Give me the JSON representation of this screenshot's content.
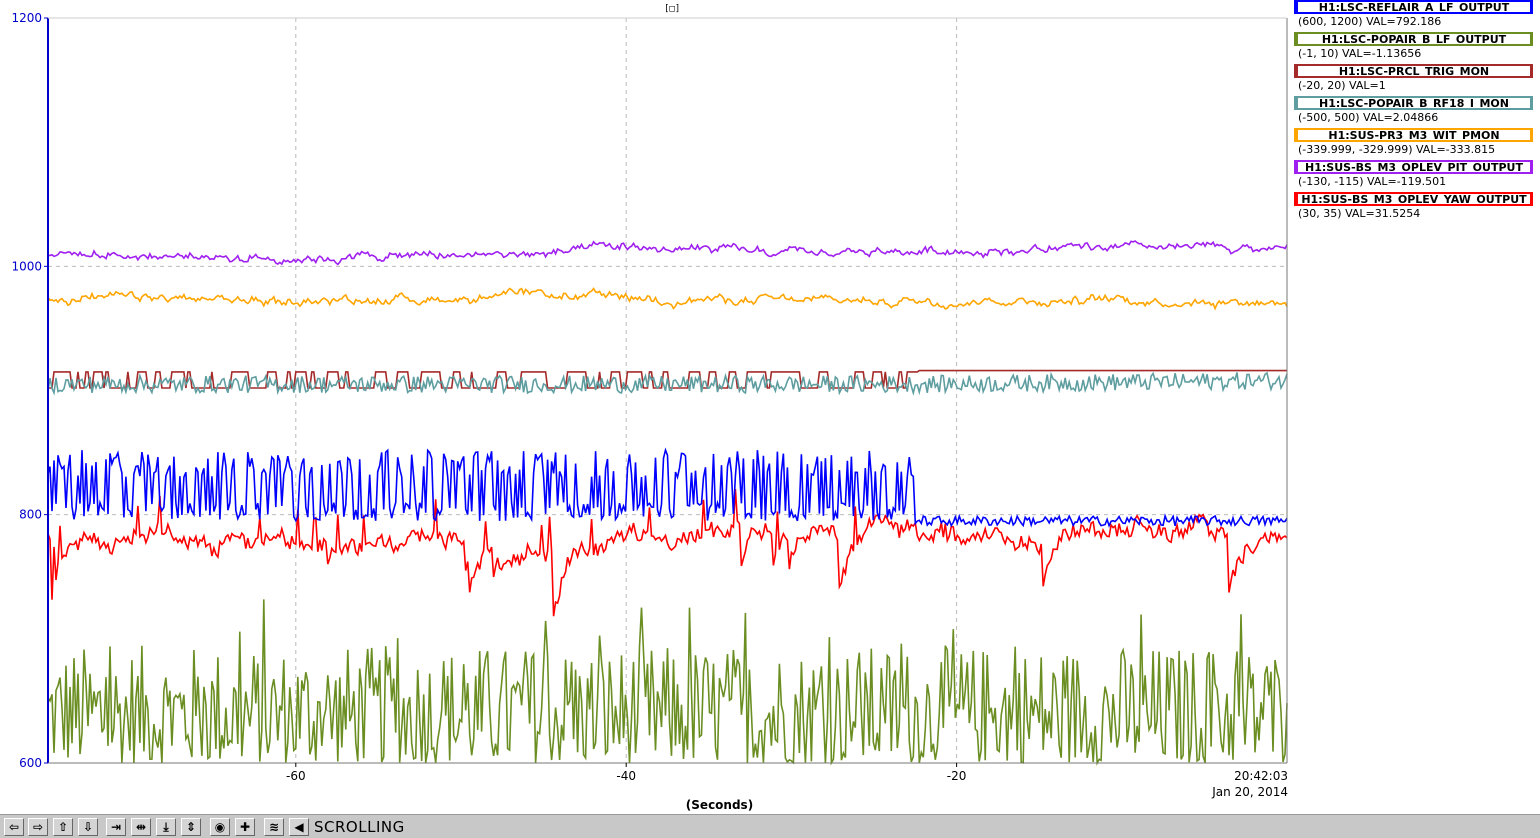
{
  "title_glyph": "[□]",
  "chart_data": {
    "type": "line",
    "xlabel": "(Seconds)",
    "ylabel": "",
    "xlim": [
      -75,
      0
    ],
    "ylim": [
      600,
      1200
    ],
    "x_ticks": [
      -60,
      -40,
      -20
    ],
    "y_ticks": [
      600,
      800,
      1000,
      1200
    ],
    "x_tick_labels": [
      "-60",
      "-40",
      "-20"
    ],
    "y_tick_labels": [
      "600",
      "800",
      "1000",
      "1200"
    ],
    "time_label": "20:42:03",
    "date_label": "Jan 20, 2014",
    "grid": true,
    "axis_color": "#0000cc",
    "series": [
      {
        "name": "H1:LSC-REFLAIR_A_LF_OUTPUT",
        "range": "(600, 1200) VAL=792.186",
        "color": "#0000ff",
        "pattern": "blue",
        "anchors": [
          [
            -75,
            820
          ],
          [
            -22.5,
            820
          ],
          [
            -21.5,
            795
          ],
          [
            0,
            795
          ]
        ]
      },
      {
        "name": "H1:LSC-POPAIR_B_LF_OUTPUT",
        "range": "(-1, 10) VAL=-1.13656",
        "color": "#6b8e23",
        "pattern": "green",
        "anchors": [
          [
            -75,
            640
          ],
          [
            0,
            640
          ]
        ]
      },
      {
        "name": "H1:LSC-PRCL_TRIG_MON",
        "range": "(-20, 20) VAL=1",
        "color": "#a52a2a",
        "pattern": "trig",
        "anchors": [
          [
            -75,
            902
          ],
          [
            -22.3,
            902
          ],
          [
            -22.3,
            916
          ],
          [
            0,
            916
          ]
        ]
      },
      {
        "name": "H1:LSC-POPAIR_B_RF18_I_MON",
        "range": "(-500, 500) VAL=2.04866",
        "color": "#5f9ea0",
        "pattern": "noise",
        "anchors": [
          [
            -75,
            905
          ],
          [
            -22.5,
            905
          ],
          [
            0,
            908
          ]
        ]
      },
      {
        "name": "H1:SUS-PR3_M3_WIT_PMON",
        "range": "(-339.999, -329.999) VAL=-333.815",
        "color": "#ffa500",
        "pattern": "smooth",
        "anchors": [
          [
            -75,
            975
          ],
          [
            -60,
            972
          ],
          [
            -45,
            976
          ],
          [
            -30,
            972
          ],
          [
            -15,
            973
          ],
          [
            0,
            972
          ]
        ]
      },
      {
        "name": "H1:SUS-BS_M3_OPLEV_PIT_OUTPUT",
        "range": "(-130, -115) VAL=-119.501",
        "color": "#a020f0",
        "pattern": "smooth",
        "anchors": [
          [
            -75,
            1010
          ],
          [
            -60,
            1007
          ],
          [
            -45,
            1010
          ],
          [
            -40,
            1015
          ],
          [
            -30,
            1010
          ],
          [
            -20,
            1013
          ],
          [
            0,
            1015
          ]
        ]
      },
      {
        "name": "H1:SUS-BS_M3_OPLEV_YAW_OUTPUT",
        "range": "(30, 35) VAL=31.5254",
        "color": "#ff0000",
        "pattern": "red",
        "anchors": [
          [
            -75,
            785
          ],
          [
            -60,
            780
          ],
          [
            -50,
            780
          ],
          [
            -45,
            765
          ],
          [
            -40,
            775
          ],
          [
            -30,
            790
          ],
          [
            -22,
            785
          ],
          [
            -15,
            780
          ],
          [
            -5,
            795
          ],
          [
            -3,
            775
          ],
          [
            0,
            785
          ]
        ]
      }
    ]
  },
  "toolbar": {
    "status": "SCROLLING",
    "buttons": [
      {
        "name": "scroll-left-button",
        "glyph": "⇦"
      },
      {
        "name": "scroll-right-button",
        "glyph": "⇨"
      },
      {
        "name": "scroll-up-button",
        "glyph": "⇧"
      },
      {
        "name": "scroll-down-button",
        "glyph": "⇩"
      },
      {
        "name": "zoom-in-horizontal-button",
        "glyph": "⇥"
      },
      {
        "name": "zoom-out-horizontal-button",
        "glyph": "⇹"
      },
      {
        "name": "zoom-in-vertical-button",
        "glyph": "⤓"
      },
      {
        "name": "zoom-out-vertical-button",
        "glyph": "⇕"
      },
      {
        "name": "record-button",
        "glyph": "◉"
      },
      {
        "name": "add-button",
        "glyph": "✚"
      },
      {
        "name": "autoscale-button",
        "glyph": "≋"
      },
      {
        "name": "scrolling-mode-button",
        "glyph": "◀"
      }
    ]
  }
}
